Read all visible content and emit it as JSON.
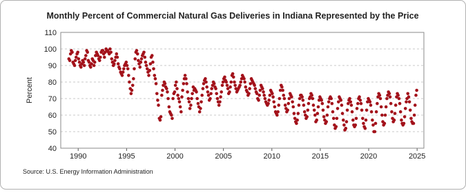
{
  "chart_data": {
    "type": "scatter",
    "title": "Monthly Percent of Commercial Natural Gas Deliveries in Indiana Represented by the Price",
    "y_label": "Percent",
    "source": "Source: U.S. Energy Information Administration",
    "xlim": [
      1988.2,
      2025.7
    ],
    "xticks": [
      1990,
      1995,
      2000,
      2005,
      2010,
      2015,
      2020,
      2025
    ],
    "ylim": [
      40,
      110
    ],
    "yticks": [
      40,
      50,
      60,
      70,
      80,
      90,
      100,
      110
    ],
    "grid": true,
    "series": [
      {
        "color": "#a3121b",
        "x": [
          1989.04,
          1989.13,
          1989.21,
          1989.29,
          1989.38,
          1989.46,
          1989.54,
          1989.63,
          1989.71,
          1989.79,
          1989.88,
          1989.96,
          1990.04,
          1990.13,
          1990.21,
          1990.29,
          1990.38,
          1990.46,
          1990.54,
          1990.63,
          1990.71,
          1990.79,
          1990.88,
          1990.96,
          1991.04,
          1991.13,
          1991.21,
          1991.29,
          1991.38,
          1991.46,
          1991.54,
          1991.63,
          1991.71,
          1991.79,
          1991.88,
          1991.96,
          1992.04,
          1992.13,
          1992.21,
          1992.29,
          1992.38,
          1992.46,
          1992.54,
          1992.63,
          1992.71,
          1992.79,
          1992.88,
          1992.96,
          1993.04,
          1993.13,
          1993.21,
          1993.29,
          1993.38,
          1993.46,
          1993.54,
          1993.63,
          1993.71,
          1993.79,
          1993.88,
          1993.96,
          1994.04,
          1994.13,
          1994.21,
          1994.29,
          1994.38,
          1994.46,
          1994.54,
          1994.63,
          1994.71,
          1994.79,
          1994.88,
          1994.96,
          1995.04,
          1995.13,
          1995.21,
          1995.29,
          1995.38,
          1995.46,
          1995.54,
          1995.63,
          1995.71,
          1995.79,
          1995.88,
          1995.96,
          1996.04,
          1996.13,
          1996.21,
          1996.29,
          1996.38,
          1996.46,
          1996.54,
          1996.63,
          1996.71,
          1996.79,
          1996.88,
          1996.96,
          1997.04,
          1997.13,
          1997.21,
          1997.29,
          1997.38,
          1997.46,
          1997.54,
          1997.63,
          1997.71,
          1997.79,
          1997.88,
          1997.96,
          1998.04,
          1998.13,
          1998.21,
          1998.29,
          1998.38,
          1998.46,
          1998.54,
          1998.63,
          1998.71,
          1998.79,
          1998.88,
          1998.96,
          1999.04,
          1999.13,
          1999.21,
          1999.29,
          1999.38,
          1999.46,
          1999.54,
          1999.63,
          1999.71,
          1999.79,
          1999.88,
          1999.96,
          2000.04,
          2000.13,
          2000.21,
          2000.29,
          2000.38,
          2000.46,
          2000.54,
          2000.63,
          2000.71,
          2000.79,
          2000.88,
          2000.96,
          2001.04,
          2001.13,
          2001.21,
          2001.29,
          2001.38,
          2001.46,
          2001.54,
          2001.63,
          2001.71,
          2001.79,
          2001.88,
          2001.96,
          2002.04,
          2002.13,
          2002.21,
          2002.29,
          2002.38,
          2002.46,
          2002.54,
          2002.63,
          2002.71,
          2002.79,
          2002.88,
          2002.96,
          2003.04,
          2003.13,
          2003.21,
          2003.29,
          2003.38,
          2003.46,
          2003.54,
          2003.63,
          2003.71,
          2003.79,
          2003.88,
          2003.96,
          2004.04,
          2004.13,
          2004.21,
          2004.29,
          2004.38,
          2004.46,
          2004.54,
          2004.63,
          2004.71,
          2004.79,
          2004.88,
          2004.96,
          2005.04,
          2005.13,
          2005.21,
          2005.29,
          2005.38,
          2005.46,
          2005.54,
          2005.63,
          2005.71,
          2005.79,
          2005.88,
          2005.96,
          2006.04,
          2006.13,
          2006.21,
          2006.29,
          2006.38,
          2006.46,
          2006.54,
          2006.63,
          2006.71,
          2006.79,
          2006.88,
          2006.96,
          2007.04,
          2007.13,
          2007.21,
          2007.29,
          2007.38,
          2007.46,
          2007.54,
          2007.63,
          2007.71,
          2007.79,
          2007.88,
          2007.96,
          2008.04,
          2008.13,
          2008.21,
          2008.29,
          2008.38,
          2008.46,
          2008.54,
          2008.63,
          2008.71,
          2008.79,
          2008.88,
          2008.96,
          2009.04,
          2009.13,
          2009.21,
          2009.29,
          2009.38,
          2009.46,
          2009.54,
          2009.63,
          2009.71,
          2009.79,
          2009.88,
          2009.96,
          2010.04,
          2010.13,
          2010.21,
          2010.29,
          2010.38,
          2010.46,
          2010.54,
          2010.63,
          2010.71,
          2010.79,
          2010.88,
          2010.96,
          2011.04,
          2011.13,
          2011.21,
          2011.29,
          2011.38,
          2011.46,
          2011.54,
          2011.63,
          2011.71,
          2011.79,
          2011.88,
          2011.96,
          2012.04,
          2012.13,
          2012.21,
          2012.29,
          2012.38,
          2012.46,
          2012.54,
          2012.63,
          2012.71,
          2012.79,
          2012.88,
          2012.96,
          2013.04,
          2013.13,
          2013.21,
          2013.29,
          2013.38,
          2013.46,
          2013.54,
          2013.63,
          2013.71,
          2013.79,
          2013.88,
          2013.96,
          2014.04,
          2014.13,
          2014.21,
          2014.29,
          2014.38,
          2014.46,
          2014.54,
          2014.63,
          2014.71,
          2014.79,
          2014.88,
          2014.96,
          2015.04,
          2015.13,
          2015.21,
          2015.29,
          2015.38,
          2015.46,
          2015.54,
          2015.63,
          2015.71,
          2015.79,
          2015.88,
          2015.96,
          2016.04,
          2016.13,
          2016.21,
          2016.29,
          2016.38,
          2016.46,
          2016.54,
          2016.63,
          2016.71,
          2016.79,
          2016.88,
          2016.96,
          2017.04,
          2017.13,
          2017.21,
          2017.29,
          2017.38,
          2017.46,
          2017.54,
          2017.63,
          2017.71,
          2017.79,
          2017.88,
          2017.96,
          2018.04,
          2018.13,
          2018.21,
          2018.29,
          2018.38,
          2018.46,
          2018.54,
          2018.63,
          2018.71,
          2018.79,
          2018.88,
          2018.96,
          2019.04,
          2019.13,
          2019.21,
          2019.29,
          2019.38,
          2019.46,
          2019.54,
          2019.63,
          2019.71,
          2019.79,
          2019.88,
          2019.96,
          2020.04,
          2020.13,
          2020.21,
          2020.29,
          2020.38,
          2020.46,
          2020.54,
          2020.63,
          2020.71,
          2020.79,
          2020.88,
          2020.96,
          2021.04,
          2021.13,
          2021.21,
          2021.29,
          2021.38,
          2021.46,
          2021.54,
          2021.63,
          2021.71,
          2021.79,
          2021.88,
          2021.96,
          2022.04,
          2022.13,
          2022.21,
          2022.29,
          2022.38,
          2022.46,
          2022.54,
          2022.63,
          2022.71,
          2022.79,
          2022.88,
          2022.96,
          2023.04,
          2023.13,
          2023.21,
          2023.29,
          2023.38,
          2023.46,
          2023.54,
          2023.63,
          2023.71,
          2023.79,
          2023.88,
          2023.96,
          2024.04,
          2024.13,
          2024.21,
          2024.29,
          2024.38,
          2024.46,
          2024.54,
          2024.63,
          2024.71,
          2024.79,
          2024.88,
          2024.96
        ],
        "values": [
          94,
          93,
          97,
          99,
          98,
          92,
          91,
          90,
          93,
          95,
          97,
          98,
          94,
          92,
          90,
          89,
          91,
          93,
          92,
          90,
          94,
          96,
          99,
          98,
          93,
          92,
          90,
          89,
          91,
          94,
          93,
          90,
          92,
          96,
          98,
          97,
          96,
          94,
          93,
          95,
          98,
          99,
          99,
          97,
          95,
          98,
          100,
          99,
          99,
          98,
          97,
          100,
          98,
          94,
          92,
          90,
          91,
          93,
          95,
          97,
          95,
          91,
          89,
          88,
          86,
          85,
          84,
          86,
          88,
          90,
          91,
          92,
          90,
          88,
          84,
          80,
          76,
          73,
          75,
          78,
          82,
          88,
          94,
          98,
          99,
          97,
          93,
          91,
          89,
          92,
          94,
          96,
          97,
          98,
          95,
          92,
          90,
          88,
          86,
          84,
          87,
          91,
          95,
          96,
          92,
          88,
          84,
          82,
          79,
          73,
          69,
          66,
          58,
          57,
          59,
          72,
          75,
          78,
          80,
          79,
          77,
          76,
          74,
          70,
          65,
          62,
          61,
          60,
          58,
          70,
          73,
          74,
          78,
          80,
          76,
          72,
          70,
          68,
          65,
          62,
          71,
          75,
          79,
          82,
          84,
          82,
          79,
          74,
          70,
          68,
          64,
          66,
          70,
          73,
          77,
          75,
          76,
          75,
          74,
          70,
          67,
          65,
          62,
          64,
          68,
          72,
          76,
          79,
          81,
          82,
          80,
          77,
          74,
          72,
          69,
          70,
          73,
          76,
          78,
          80,
          79,
          77,
          76,
          73,
          70,
          68,
          66,
          68,
          71,
          74,
          78,
          80,
          82,
          83,
          81,
          80,
          78,
          76,
          73,
          74,
          77,
          80,
          84,
          85,
          83,
          80,
          78,
          76,
          74,
          75,
          76,
          77,
          78,
          80,
          82,
          84,
          83,
          82,
          80,
          77,
          75,
          74,
          72,
          73,
          76,
          79,
          82,
          81,
          80,
          79,
          78,
          76,
          74,
          73,
          70,
          69,
          72,
          75,
          78,
          77,
          76,
          74,
          72,
          70,
          68,
          67,
          66,
          67,
          69,
          72,
          75,
          74,
          73,
          71,
          68,
          65,
          62,
          61,
          60,
          62,
          66,
          70,
          75,
          78,
          77,
          75,
          72,
          70,
          66,
          64,
          62,
          63,
          67,
          70,
          73,
          72,
          71,
          68,
          65,
          61,
          58,
          56,
          55,
          57,
          61,
          66,
          70,
          72,
          72,
          71,
          69,
          66,
          62,
          60,
          58,
          59,
          63,
          67,
          70,
          71,
          73,
          72,
          70,
          66,
          63,
          60,
          56,
          57,
          61,
          65,
          69,
          71,
          70,
          69,
          67,
          63,
          59,
          57,
          55,
          56,
          60,
          65,
          68,
          70,
          71,
          70,
          67,
          62,
          58,
          54,
          52,
          53,
          58,
          64,
          68,
          71,
          70,
          69,
          66,
          61,
          57,
          54,
          51,
          52,
          56,
          63,
          67,
          69,
          70,
          68,
          66,
          62,
          57,
          54,
          53,
          54,
          58,
          64,
          67,
          70,
          71,
          69,
          67,
          63,
          58,
          55,
          53,
          52,
          57,
          63,
          68,
          70,
          69,
          68,
          66,
          62,
          57,
          54,
          50,
          50,
          55,
          62,
          67,
          71,
          73,
          72,
          70,
          65,
          60,
          56,
          54,
          55,
          60,
          65,
          70,
          72,
          74,
          73,
          71,
          67,
          62,
          58,
          56,
          57,
          61,
          66,
          71,
          73,
          72,
          70,
          67,
          62,
          57,
          55,
          54,
          55,
          59,
          64,
          68,
          70,
          73,
          71,
          68,
          63,
          58,
          56,
          55,
          55,
          60,
          66,
          72,
          75
        ]
      }
    ]
  }
}
